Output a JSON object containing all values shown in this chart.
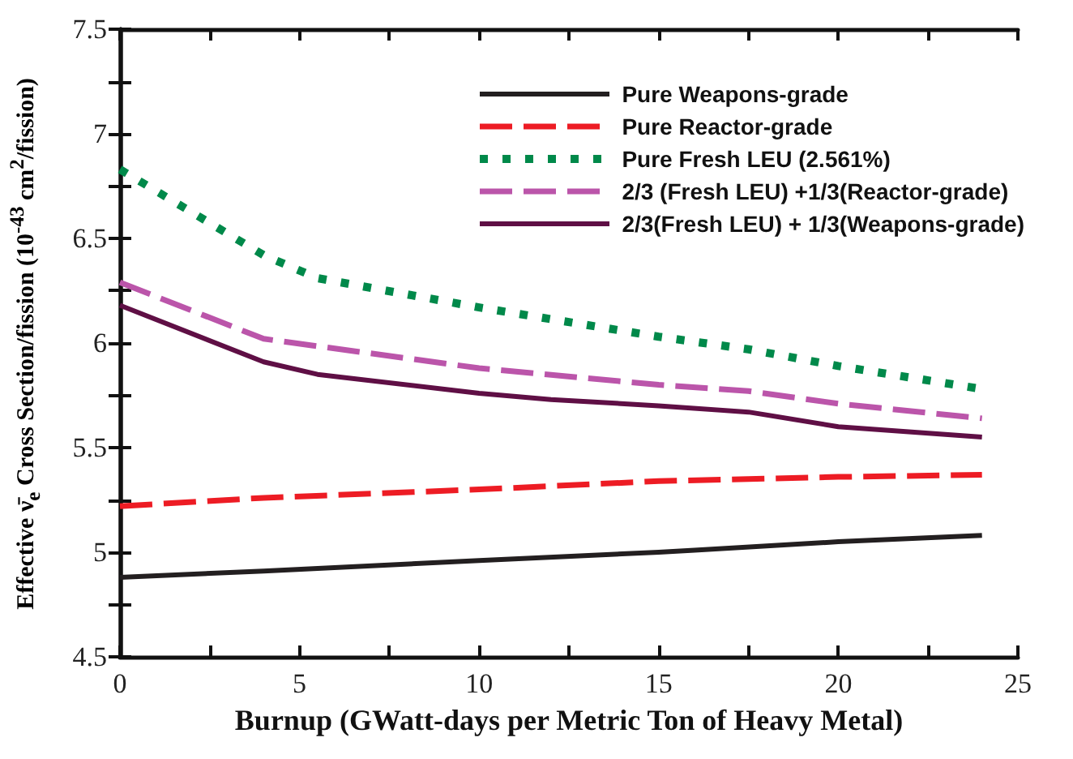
{
  "chart_data": {
    "type": "line",
    "xlabel": "Burnup (GWatt-days per Metric Ton of Heavy Metal)",
    "ylabel": "Effective ν̄$_{e}$ Cross Section/fission (10$^{-43}$ cm$^{2}$/fission)",
    "xlim": [
      0,
      25
    ],
    "xticks": [
      0,
      {
        "value": 2.5,
        "label": null
      },
      5,
      {
        "value": 7.5,
        "label": null
      },
      10,
      {
        "value": 12.5,
        "label": null
      },
      15,
      {
        "value": 17.5,
        "label": null
      },
      20,
      {
        "value": 22.5,
        "label": null
      },
      25
    ],
    "ylim": [
      4.5,
      7.5
    ],
    "yticks": [
      4.5,
      {
        "value": 4.75,
        "label": null
      },
      5,
      {
        "value": 5.25,
        "label": null
      },
      5.5,
      {
        "value": 5.75,
        "label": null
      },
      6,
      {
        "value": 6.25,
        "label": null
      },
      6.5,
      {
        "value": 6.75,
        "label": null
      },
      7,
      {
        "value": 7.25,
        "label": null
      },
      7.5
    ],
    "grid": false,
    "legend": "top right",
    "marker": "none",
    "series": [
      {
        "name": "Pure Weapons-grade",
        "color": "#231f20",
        "line_style": "solid",
        "x": [
          0,
          4,
          10,
          15,
          16,
          20,
          24
        ],
        "values": [
          4.88,
          4.91,
          4.96,
          5.0,
          5.01,
          5.05,
          5.08
        ]
      },
      {
        "name": "Pure Reactor-grade",
        "color": "#ed1c24",
        "line_style": "dashed",
        "x": [
          0,
          4,
          10,
          15,
          20,
          24
        ],
        "values": [
          5.22,
          5.26,
          5.3,
          5.34,
          5.36,
          5.37
        ]
      },
      {
        "name": "Pure Fresh LEU (2.561%)",
        "color": "#00894a",
        "line_style": "dotted",
        "x": [
          0,
          4,
          5.5,
          10,
          15,
          17.5,
          20,
          24
        ],
        "values": [
          6.83,
          6.42,
          6.31,
          6.17,
          6.03,
          5.97,
          5.89,
          5.78
        ]
      },
      {
        "name": "2/3 (Fresh LEU) +1/3(Reactor-grade)",
        "color": "#bb55aa",
        "line_style": "dashed",
        "x": [
          0,
          4,
          10,
          15,
          17.5,
          20,
          24
        ],
        "values": [
          6.29,
          6.02,
          5.88,
          5.8,
          5.77,
          5.71,
          5.64
        ]
      },
      {
        "name": "2/3(Fresh LEU) + 1/3(Weapons-grade)",
        "color": "#5f0f45",
        "line_style": "solid",
        "x": [
          0,
          4,
          5.5,
          10,
          12,
          15,
          17.5,
          20,
          24
        ],
        "values": [
          6.18,
          5.91,
          5.85,
          5.76,
          5.73,
          5.7,
          5.67,
          5.6,
          5.55
        ]
      }
    ]
  }
}
